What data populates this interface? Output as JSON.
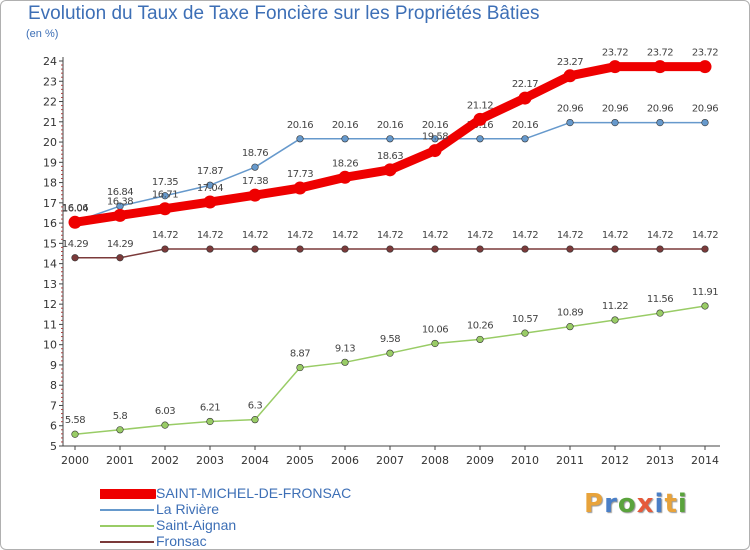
{
  "title": "Evolution du Taux de Taxe Foncière sur les Propriétés Bâties",
  "unit_label": "(en %)",
  "logo": {
    "text": "Proxiti",
    "colors": [
      "#e8a33b",
      "#4a7fc7",
      "#5aa33c",
      "#e55a3b",
      "#4a7fc7",
      "#e8a33b",
      "#5aa33c"
    ]
  },
  "chart_data": {
    "type": "line",
    "title": "Evolution du Taux de Taxe Foncière sur les Propriétés Bâties",
    "ylabel": "(en %)",
    "xlabel": "",
    "ylim": [
      5,
      24
    ],
    "yticks": [
      "5",
      "6",
      "7",
      "8",
      "9",
      "10",
      "11",
      "12",
      "13",
      "14",
      "15",
      "16",
      "17",
      "18",
      "19",
      "20",
      "21",
      "22",
      "23",
      "24"
    ],
    "x": [
      "2000",
      "2001",
      "2002",
      "2003",
      "2004",
      "2005",
      "2006",
      "2007",
      "2008",
      "2009",
      "2010",
      "2011",
      "2012",
      "2013",
      "2014"
    ],
    "grid": false,
    "legend": "bottom-left",
    "series": [
      {
        "name": "La Rivière",
        "color": "#6699cc",
        "values": [
          16.06,
          16.84,
          17.35,
          17.87,
          18.76,
          20.16,
          20.16,
          20.16,
          20.16,
          20.16,
          20.16,
          20.96,
          20.96,
          20.96,
          20.96
        ],
        "labels": [
          "16.06",
          "16.84",
          "17.35",
          "17.87",
          "18.76",
          "20.16",
          "20.16",
          "20.16",
          "20.16",
          "20.16",
          "20.16",
          "20.96",
          "20.96",
          "20.96",
          "20.96"
        ]
      },
      {
        "name": "Saint-Aignan",
        "color": "#99cc66",
        "values": [
          5.58,
          5.8,
          6.03,
          6.21,
          6.3,
          8.87,
          9.13,
          9.58,
          10.06,
          10.26,
          10.57,
          10.89,
          11.22,
          11.56,
          11.91
        ],
        "labels": [
          "5.58",
          "5.8",
          "6.03",
          "6.21",
          "6.3",
          "8.87",
          "9.13",
          "9.58",
          "10.06",
          "10.26",
          "10.57",
          "10.89",
          "11.22",
          "11.56",
          "11.91"
        ]
      },
      {
        "name": "Fronsac",
        "color": "#7b3a3a",
        "values": [
          14.29,
          14.29,
          14.72,
          14.72,
          14.72,
          14.72,
          14.72,
          14.72,
          14.72,
          14.72,
          14.72,
          14.72,
          14.72,
          14.72,
          14.72
        ],
        "labels": [
          "14.29",
          "14.29",
          "14.72",
          "14.72",
          "14.72",
          "14.72",
          "14.72",
          "14.72",
          "14.72",
          "14.72",
          "14.72",
          "14.72",
          "14.72",
          "14.72",
          "14.72"
        ]
      },
      {
        "name": "SAINT-MICHEL-DE-FRONSAC",
        "color": "#ee0000",
        "values": [
          16.04,
          16.38,
          16.71,
          17.04,
          17.38,
          17.73,
          18.26,
          18.63,
          19.58,
          21.12,
          22.17,
          23.27,
          23.72,
          23.72,
          23.72
        ],
        "labels": [
          "16.04",
          "16.38",
          "16.71",
          "17.04",
          "17.38",
          "17.73",
          "18.26",
          "18.63",
          "19.58",
          "21.12",
          "22.17",
          "23.27",
          "23.72",
          "23.72",
          "23.72"
        ]
      }
    ]
  },
  "legend_items": [
    {
      "name": "SAINT-MICHEL-DE-FRONSAC",
      "color": "#ee0000",
      "thick": true
    },
    {
      "name": "La Rivière",
      "color": "#6699cc",
      "thick": false
    },
    {
      "name": "Saint-Aignan",
      "color": "#99cc66",
      "thick": false
    },
    {
      "name": "Fronsac",
      "color": "#7b3a3a",
      "thick": false
    }
  ]
}
